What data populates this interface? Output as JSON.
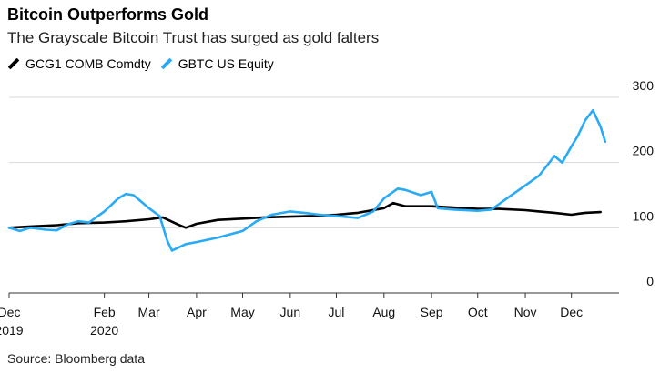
{
  "title": "Bitcoin Outperforms Gold",
  "subtitle": "The Grayscale Bitcoin Trust has surged as gold falters",
  "source": "Source: Bloomberg data",
  "colors": {
    "gold": "#000000",
    "gbtc": "#29aaf4",
    "grid": "#d9d9d9",
    "axis": "#333333"
  },
  "chart_data": {
    "type": "line",
    "title": "Bitcoin Outperforms Gold",
    "subtitle": "The Grayscale Bitcoin Trust has surged as gold falters",
    "ylim": [
      0,
      300
    ],
    "y_ticks": [
      0,
      100,
      200,
      300
    ],
    "y_tick_labels": [
      "0",
      "100",
      "200",
      "300"
    ],
    "grid": true,
    "legend_position": "top-left",
    "x_range": [
      "2019-12-01",
      "2021-01-01"
    ],
    "x_ticks": [
      {
        "date": "2019-12-01",
        "label": "Dec",
        "sublabel": "2019"
      },
      {
        "date": "2020-02-01",
        "label": "Feb",
        "sublabel": "2020"
      },
      {
        "date": "2020-03-01",
        "label": "Mar"
      },
      {
        "date": "2020-04-01",
        "label": "Apr"
      },
      {
        "date": "2020-05-01",
        "label": "May"
      },
      {
        "date": "2020-06-01",
        "label": "Jun"
      },
      {
        "date": "2020-07-01",
        "label": "Jul"
      },
      {
        "date": "2020-08-01",
        "label": "Aug"
      },
      {
        "date": "2020-09-01",
        "label": "Sep"
      },
      {
        "date": "2020-10-01",
        "label": "Oct"
      },
      {
        "date": "2020-11-01",
        "label": "Nov"
      },
      {
        "date": "2020-12-01",
        "label": "Dec"
      }
    ],
    "series": [
      {
        "name": "GCG1 COMB Comdty",
        "color": "#000000",
        "points": [
          [
            "2019-12-01",
            100
          ],
          [
            "2019-12-15",
            102
          ],
          [
            "2020-01-01",
            104
          ],
          [
            "2020-01-15",
            107
          ],
          [
            "2020-02-01",
            108
          ],
          [
            "2020-02-15",
            110
          ],
          [
            "2020-03-01",
            113
          ],
          [
            "2020-03-10",
            116
          ],
          [
            "2020-03-20",
            105
          ],
          [
            "2020-03-25",
            100
          ],
          [
            "2020-04-01",
            106
          ],
          [
            "2020-04-15",
            112
          ],
          [
            "2020-05-01",
            114
          ],
          [
            "2020-05-15",
            116
          ],
          [
            "2020-06-01",
            117
          ],
          [
            "2020-06-15",
            118
          ],
          [
            "2020-07-01",
            120
          ],
          [
            "2020-07-15",
            123
          ],
          [
            "2020-08-01",
            130
          ],
          [
            "2020-08-07",
            138
          ],
          [
            "2020-08-15",
            133
          ],
          [
            "2020-09-01",
            133
          ],
          [
            "2020-09-15",
            131
          ],
          [
            "2020-10-01",
            129
          ],
          [
            "2020-10-15",
            129
          ],
          [
            "2020-11-01",
            127
          ],
          [
            "2020-11-10",
            125
          ],
          [
            "2020-11-20",
            123
          ],
          [
            "2020-12-01",
            120
          ],
          [
            "2020-12-10",
            123
          ],
          [
            "2020-12-20",
            124
          ]
        ]
      },
      {
        "name": "GBTC US Equity",
        "color": "#29aaf4",
        "points": [
          [
            "2019-12-01",
            100
          ],
          [
            "2019-12-08",
            95
          ],
          [
            "2019-12-15",
            100
          ],
          [
            "2019-12-25",
            97
          ],
          [
            "2020-01-01",
            96
          ],
          [
            "2020-01-08",
            105
          ],
          [
            "2020-01-15",
            110
          ],
          [
            "2020-01-22",
            108
          ],
          [
            "2020-02-01",
            125
          ],
          [
            "2020-02-10",
            145
          ],
          [
            "2020-02-15",
            152
          ],
          [
            "2020-02-20",
            150
          ],
          [
            "2020-03-01",
            130
          ],
          [
            "2020-03-08",
            118
          ],
          [
            "2020-03-13",
            80
          ],
          [
            "2020-03-16",
            65
          ],
          [
            "2020-03-25",
            75
          ],
          [
            "2020-04-01",
            78
          ],
          [
            "2020-04-15",
            85
          ],
          [
            "2020-05-01",
            95
          ],
          [
            "2020-05-10",
            110
          ],
          [
            "2020-05-20",
            120
          ],
          [
            "2020-06-01",
            125
          ],
          [
            "2020-06-10",
            123
          ],
          [
            "2020-06-20",
            120
          ],
          [
            "2020-07-01",
            118
          ],
          [
            "2020-07-15",
            115
          ],
          [
            "2020-07-25",
            125
          ],
          [
            "2020-08-01",
            145
          ],
          [
            "2020-08-10",
            160
          ],
          [
            "2020-08-15",
            158
          ],
          [
            "2020-08-25",
            150
          ],
          [
            "2020-09-01",
            155
          ],
          [
            "2020-09-05",
            130
          ],
          [
            "2020-09-15",
            128
          ],
          [
            "2020-10-01",
            126
          ],
          [
            "2020-10-10",
            128
          ],
          [
            "2020-10-20",
            145
          ],
          [
            "2020-11-01",
            165
          ],
          [
            "2020-11-10",
            180
          ],
          [
            "2020-11-20",
            210
          ],
          [
            "2020-11-25",
            200
          ],
          [
            "2020-12-01",
            225
          ],
          [
            "2020-12-05",
            240
          ],
          [
            "2020-12-10",
            265
          ],
          [
            "2020-12-15",
            280
          ],
          [
            "2020-12-20",
            255
          ],
          [
            "2020-12-23",
            232
          ]
        ]
      }
    ]
  }
}
